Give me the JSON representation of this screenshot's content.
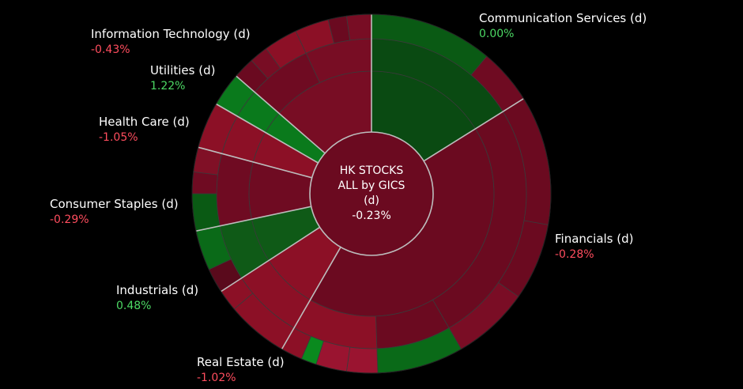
{
  "chart_data": {
    "type": "sunburst",
    "center": {
      "lines": [
        "HK STOCKS",
        "ALL by GICS",
        "(d)",
        "-0.23%"
      ]
    },
    "sectors": [
      {
        "name": "Communication Services (d)",
        "value_text": "0.00%",
        "value": 0.0,
        "color": "#0a4a12",
        "start": 0,
        "end": 58,
        "label_anchor": "start"
      },
      {
        "name": "Financials (d)",
        "value_text": "-0.28%",
        "value": -0.28,
        "color": "#6b0a20",
        "start": 58,
        "end": 210,
        "label_anchor": "start"
      },
      {
        "name": "Real Estate (d)",
        "value_text": "-1.02%",
        "value": -1.02,
        "color": "#8c1026",
        "start": 210,
        "end": 237,
        "label_anchor": "start"
      },
      {
        "name": "Industrials (d)",
        "value_text": "0.48%",
        "value": 0.48,
        "color": "#0f5a17",
        "start": 237,
        "end": 258,
        "label_anchor": "start"
      },
      {
        "name": "Consumer Staples (d)",
        "value_text": "-0.29%",
        "value": -0.29,
        "color": "#6f0b22",
        "start": 258,
        "end": 285,
        "label_anchor": "start"
      },
      {
        "name": "Health Care (d)",
        "value_text": "-1.05%",
        "value": -1.05,
        "color": "#8c1026",
        "start": 285,
        "end": 300,
        "label_anchor": "start"
      },
      {
        "name": "Utilities (d)",
        "value_text": "1.22%",
        "value": 1.22,
        "color": "#0a7a1c",
        "start": 300,
        "end": 311,
        "label_anchor": "start"
      },
      {
        "name": "Information Technology (d)",
        "value_text": "-0.43%",
        "value": -0.43,
        "color": "#780d24",
        "start": 311,
        "end": 360,
        "label_anchor": "start"
      }
    ],
    "mid_ring": [
      {
        "start": 0,
        "end": 58,
        "color": "#0a4a12"
      },
      {
        "start": 58,
        "end": 150,
        "color": "#6b0a20"
      },
      {
        "start": 150,
        "end": 178,
        "color": "#6b0a20"
      },
      {
        "start": 178,
        "end": 210,
        "color": "#8c1026"
      },
      {
        "start": 210,
        "end": 237,
        "color": "#8c1026"
      },
      {
        "start": 237,
        "end": 258,
        "color": "#0f5a17"
      },
      {
        "start": 258,
        "end": 285,
        "color": "#6f0b22"
      },
      {
        "start": 285,
        "end": 300,
        "color": "#8c1026"
      },
      {
        "start": 300,
        "end": 311,
        "color": "#0a7a1c"
      },
      {
        "start": 311,
        "end": 335,
        "color": "#6f0b22"
      },
      {
        "start": 335,
        "end": 360,
        "color": "#780d24"
      }
    ],
    "outer_ring": [
      {
        "start": 0,
        "end": 40,
        "color": "#0a5a14"
      },
      {
        "start": 40,
        "end": 58,
        "color": "#6f0b22"
      },
      {
        "start": 58,
        "end": 100,
        "color": "#6b0a20"
      },
      {
        "start": 100,
        "end": 125,
        "color": "#6b0a20"
      },
      {
        "start": 125,
        "end": 150,
        "color": "#7a0d25"
      },
      {
        "start": 150,
        "end": 178,
        "color": "#0a6a18"
      },
      {
        "start": 178,
        "end": 188,
        "color": "#9a1430"
      },
      {
        "start": 188,
        "end": 198,
        "color": "#9a1430"
      },
      {
        "start": 198,
        "end": 203,
        "color": "#0a8a1e"
      },
      {
        "start": 203,
        "end": 230,
        "color": "#8c1026"
      },
      {
        "start": 230,
        "end": 237,
        "color": "#8c1026"
      },
      {
        "start": 237,
        "end": 245,
        "color": "#5a0a1c"
      },
      {
        "start": 245,
        "end": 258,
        "color": "#0a6a18"
      },
      {
        "start": 258,
        "end": 270,
        "color": "#0a5a14"
      },
      {
        "start": 270,
        "end": 277,
        "color": "#6f0b22"
      },
      {
        "start": 277,
        "end": 285,
        "color": "#801026"
      },
      {
        "start": 285,
        "end": 300,
        "color": "#8c1026"
      },
      {
        "start": 300,
        "end": 311,
        "color": "#0a7a1c"
      },
      {
        "start": 311,
        "end": 318,
        "color": "#6a0a20"
      },
      {
        "start": 318,
        "end": 324,
        "color": "#780d24"
      },
      {
        "start": 324,
        "end": 335,
        "color": "#8c1026"
      },
      {
        "start": 335,
        "end": 346,
        "color": "#8c1026"
      },
      {
        "start": 346,
        "end": 352,
        "color": "#6a0a20"
      },
      {
        "start": 352,
        "end": 360,
        "color": "#780d24"
      }
    ],
    "colors": {
      "positive": "#4cd964",
      "negative": "#ff4d5e",
      "zero": "#4cd964",
      "separator": "#bdbdbd",
      "background": "#000000"
    }
  }
}
